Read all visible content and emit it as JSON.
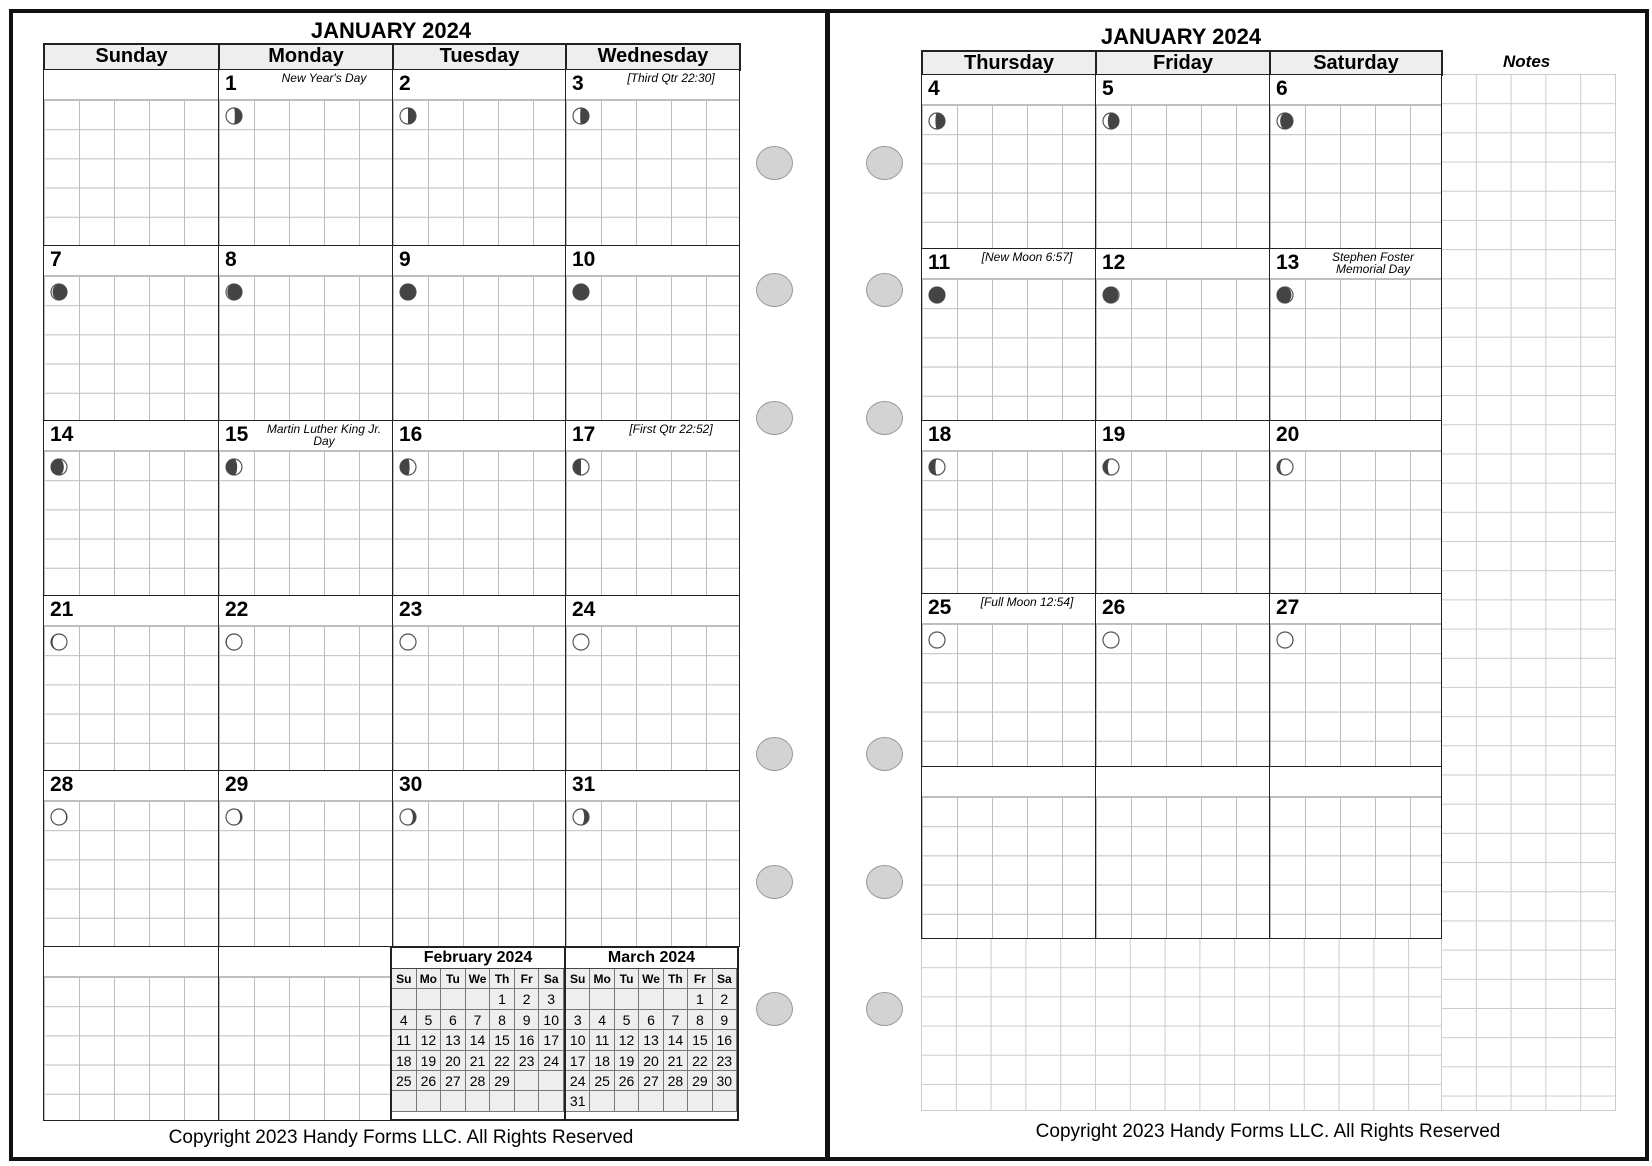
{
  "month_title": "JANUARY 2024",
  "left_page": {
    "weekdays": [
      "Sunday",
      "Monday",
      "Tuesday",
      "Wednesday"
    ],
    "weeks": [
      [
        null,
        1,
        2,
        3
      ],
      [
        7,
        8,
        9,
        10
      ],
      [
        14,
        15,
        16,
        17
      ],
      [
        21,
        22,
        23,
        24
      ],
      [
        28,
        29,
        30,
        31
      ]
    ],
    "copyright": "Copyright 2023 Handy Forms LLC. All Rights Reserved"
  },
  "right_page": {
    "weekdays": [
      "Thursday",
      "Friday",
      "Saturday"
    ],
    "weeks": [
      [
        4,
        5,
        6
      ],
      [
        11,
        12,
        13
      ],
      [
        18,
        19,
        20
      ],
      [
        25,
        26,
        27
      ],
      [
        null,
        null,
        null
      ]
    ],
    "notes_label": "Notes",
    "copyright": "Copyright 2023 Handy Forms LLC. All Rights Reserved"
  },
  "day_notes": {
    "1": "New Year's Day",
    "3": "[Third Qtr 22:30]",
    "11": "[New Moon 6:57]",
    "13": "Stephen Foster Memorial Day",
    "15": "Martin Luther King Jr. Day",
    "17": "[First Qtr 22:52]",
    "25": "[Full Moon 12:54]"
  },
  "moon_phases": {
    "1": {
      "dark": 0.45,
      "side": "right"
    },
    "2": {
      "dark": 0.5,
      "side": "right"
    },
    "3": {
      "dark": 0.55,
      "side": "right"
    },
    "4": {
      "dark": 0.6,
      "side": "right"
    },
    "5": {
      "dark": 0.7,
      "side": "right"
    },
    "6": {
      "dark": 0.8,
      "side": "right"
    },
    "7": {
      "dark": 0.9,
      "side": "right"
    },
    "8": {
      "dark": 0.92,
      "side": "right"
    },
    "9": {
      "dark": 1,
      "side": "right"
    },
    "10": {
      "dark": 1,
      "side": "right"
    },
    "11": {
      "dark": 1,
      "side": "right"
    },
    "12": {
      "dark": 0.95,
      "side": "left"
    },
    "13": {
      "dark": 0.9,
      "side": "left"
    },
    "14": {
      "dark": 0.8,
      "side": "left"
    },
    "15": {
      "dark": 0.7,
      "side": "left"
    },
    "16": {
      "dark": 0.6,
      "side": "left"
    },
    "17": {
      "dark": 0.5,
      "side": "left"
    },
    "18": {
      "dark": 0.4,
      "side": "left"
    },
    "19": {
      "dark": 0.3,
      "side": "left"
    },
    "20": {
      "dark": 0.2,
      "side": "left"
    },
    "21": {
      "dark": 0.1,
      "side": "left"
    },
    "22": {
      "dark": 0.05,
      "side": "left"
    },
    "23": {
      "dark": 0,
      "side": "left"
    },
    "24": {
      "dark": 0,
      "side": "left"
    },
    "25": {
      "dark": 0,
      "side": "left"
    },
    "26": {
      "dark": 0,
      "side": "right"
    },
    "27": {
      "dark": 0.03,
      "side": "right"
    },
    "28": {
      "dark": 0.06,
      "side": "right"
    },
    "29": {
      "dark": 0.12,
      "side": "right"
    },
    "30": {
      "dark": 0.2,
      "side": "right"
    },
    "31": {
      "dark": 0.3,
      "side": "right"
    }
  },
  "mini_calendars": [
    {
      "title": "February 2024",
      "dow": [
        "Su",
        "Mo",
        "Tu",
        "We",
        "Th",
        "Fr",
        "Sa"
      ],
      "days": [
        null,
        null,
        null,
        null,
        1,
        2,
        3,
        4,
        5,
        6,
        7,
        8,
        9,
        10,
        11,
        12,
        13,
        14,
        15,
        16,
        17,
        18,
        19,
        20,
        21,
        22,
        23,
        24,
        25,
        26,
        27,
        28,
        29,
        null,
        null,
        null,
        null,
        null,
        null,
        null,
        null,
        null
      ]
    },
    {
      "title": "March 2024",
      "dow": [
        "Su",
        "Mo",
        "Tu",
        "We",
        "Th",
        "Fr",
        "Sa"
      ],
      "days": [
        null,
        null,
        null,
        null,
        null,
        1,
        2,
        3,
        4,
        5,
        6,
        7,
        8,
        9,
        10,
        11,
        12,
        13,
        14,
        15,
        16,
        17,
        18,
        19,
        20,
        21,
        22,
        23,
        24,
        25,
        26,
        27,
        28,
        29,
        30,
        31,
        null,
        null,
        null,
        null,
        null,
        null
      ]
    }
  ],
  "colors": {
    "moon_dark": "#444444",
    "grid_line": "#bdbdbd",
    "hole": "#d3d3d3",
    "header_bg": "#eeeeee"
  }
}
